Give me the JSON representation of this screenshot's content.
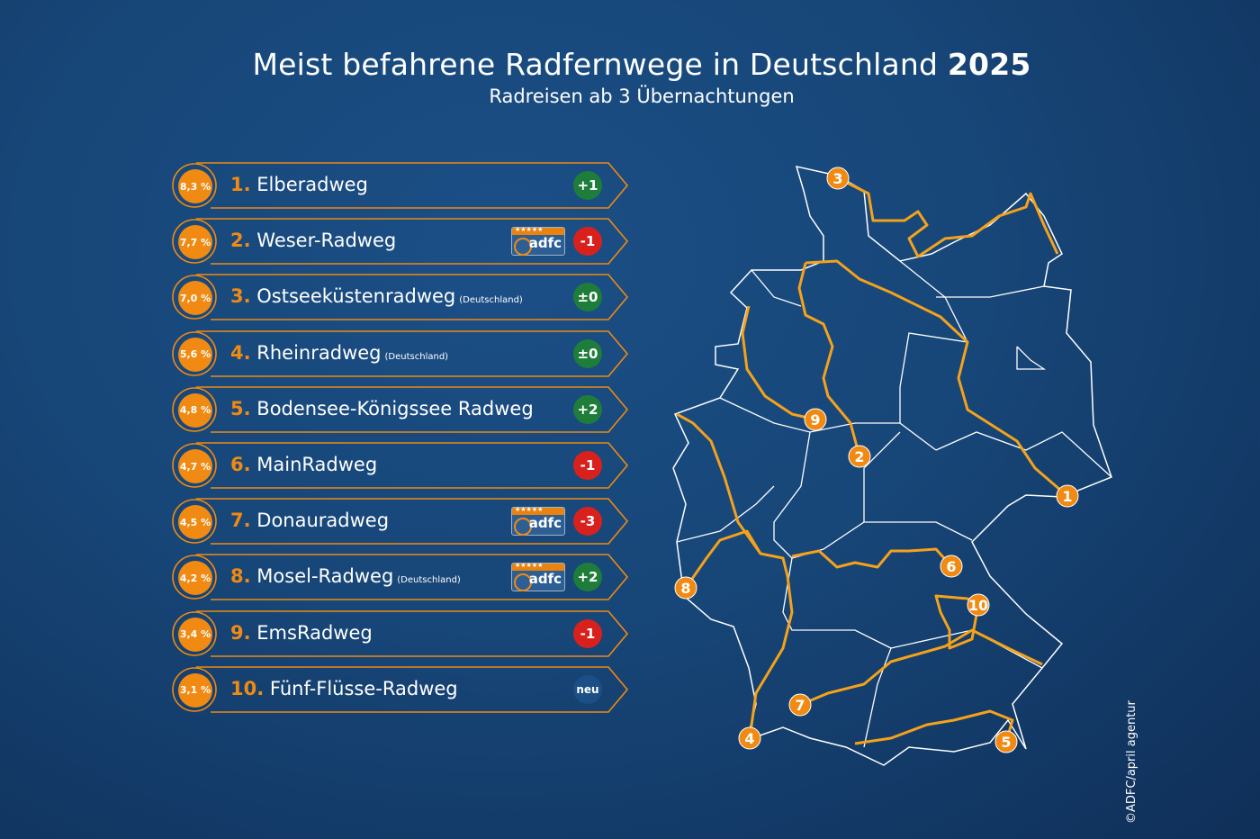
{
  "title": {
    "main": "Meist befahrene Radfernwege in Deutschland",
    "year": "2025"
  },
  "subtitle": "Radreisen ab 3 Übernachtungen",
  "colors": {
    "accent": "#f08a12",
    "up": "#1e7d3a",
    "down": "#d8211d",
    "same": "#1e7d3a",
    "new": "#1c4f86",
    "background": "#174678"
  },
  "ranking": [
    {
      "rank": "1.",
      "name": "Elberadweg",
      "note": "",
      "share": "8,3 %",
      "change": "+1",
      "trend": "up",
      "adfc_stars": false
    },
    {
      "rank": "2.",
      "name": "Weser-Radweg",
      "note": "",
      "share": "7,7 %",
      "change": "-1",
      "trend": "down",
      "adfc_stars": true
    },
    {
      "rank": "3.",
      "name": "Ostseeküstenradweg",
      "note": "(Deutschland)",
      "share": "7,0 %",
      "change": "±0",
      "trend": "same",
      "adfc_stars": false
    },
    {
      "rank": "4.",
      "name": "Rheinradweg",
      "note": "(Deutschland)",
      "share": "5,6 %",
      "change": "±0",
      "trend": "same",
      "adfc_stars": false
    },
    {
      "rank": "5.",
      "name": "Bodensee-Königssee Radweg",
      "note": "",
      "share": "4,8 %",
      "change": "+2",
      "trend": "up",
      "adfc_stars": false
    },
    {
      "rank": "6.",
      "name": "MainRadweg",
      "note": "",
      "share": "4,7 %",
      "change": "-1",
      "trend": "down",
      "adfc_stars": false
    },
    {
      "rank": "7.",
      "name": "Donauradweg",
      "note": "",
      "share": "4,5 %",
      "change": "-3",
      "trend": "down",
      "adfc_stars": true
    },
    {
      "rank": "8.",
      "name": "Mosel-Radweg",
      "note": "(Deutschland)",
      "share": "4,2 %",
      "change": "+2",
      "trend": "up",
      "adfc_stars": true
    },
    {
      "rank": "9.",
      "name": "EmsRadweg",
      "note": "",
      "share": "3,4 %",
      "change": "-1",
      "trend": "down",
      "adfc_stars": false
    },
    {
      "rank": "10.",
      "name": "Fünf-Flüsse-Radweg",
      "note": "",
      "share": "3,1 %",
      "change": "neu",
      "trend": "new",
      "adfc_stars": false
    }
  ],
  "adfc_logo": {
    "text": "adfc",
    "stars": "★★★★★"
  },
  "map_markers": [
    "1",
    "2",
    "3",
    "4",
    "5",
    "6",
    "7",
    "8",
    "9",
    "10"
  ],
  "copyright": "©ADFC/april agentur"
}
